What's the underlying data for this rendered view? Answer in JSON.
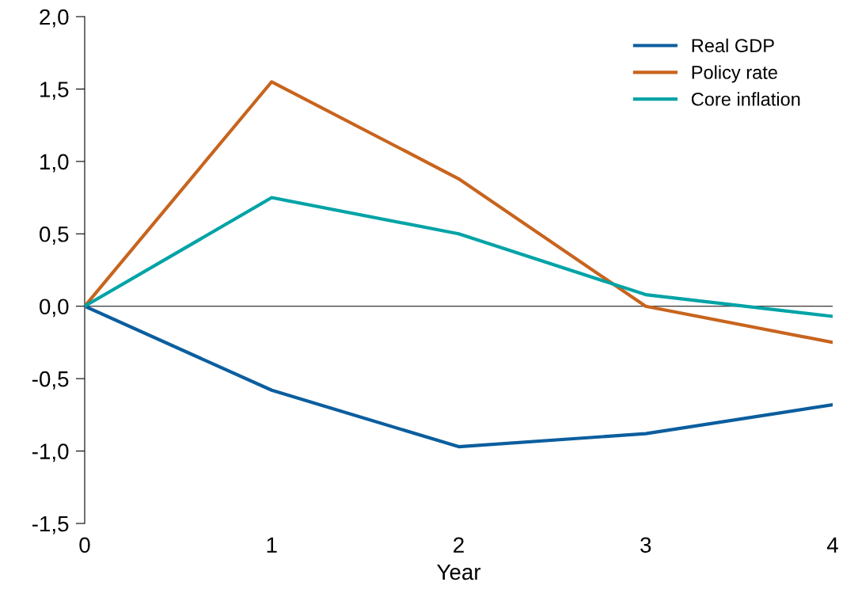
{
  "chart_data": {
    "type": "line",
    "xlabel": "Year",
    "x": [
      0,
      1,
      2,
      3,
      4
    ],
    "series": [
      {
        "name": "Real GDP",
        "color": "#0b5e9e",
        "values": [
          0,
          -0.58,
          -0.97,
          -0.88,
          -0.68
        ]
      },
      {
        "name": "Policy rate",
        "color": "#c8641e",
        "values": [
          0,
          1.55,
          0.88,
          0.0,
          -0.25
        ]
      },
      {
        "name": "Core inflation",
        "color": "#00a3a6",
        "values": [
          0,
          0.75,
          0.5,
          0.08,
          -0.07
        ]
      }
    ],
    "xlim": [
      0,
      4
    ],
    "xticks": [
      0,
      1,
      2,
      3,
      4
    ],
    "ylim": [
      -1.5,
      2.0
    ],
    "yticks": [
      {
        "value": -1.5,
        "label": "-1,5"
      },
      {
        "value": -1.0,
        "label": "-1,0"
      },
      {
        "value": -0.5,
        "label": "-0,5"
      },
      {
        "value": 0.0,
        "label": "0,0"
      },
      {
        "value": 0.5,
        "label": "0,5"
      },
      {
        "value": 1.0,
        "label": "1,0"
      },
      {
        "value": 1.5,
        "label": "1,5"
      },
      {
        "value": 2.0,
        "label": "2,0"
      }
    ],
    "ref_lines": [
      {
        "axis": "y",
        "value": 0,
        "color": "#000000"
      }
    ],
    "grid": false,
    "legend": "top right",
    "marker": "none",
    "line_style": "solid"
  }
}
